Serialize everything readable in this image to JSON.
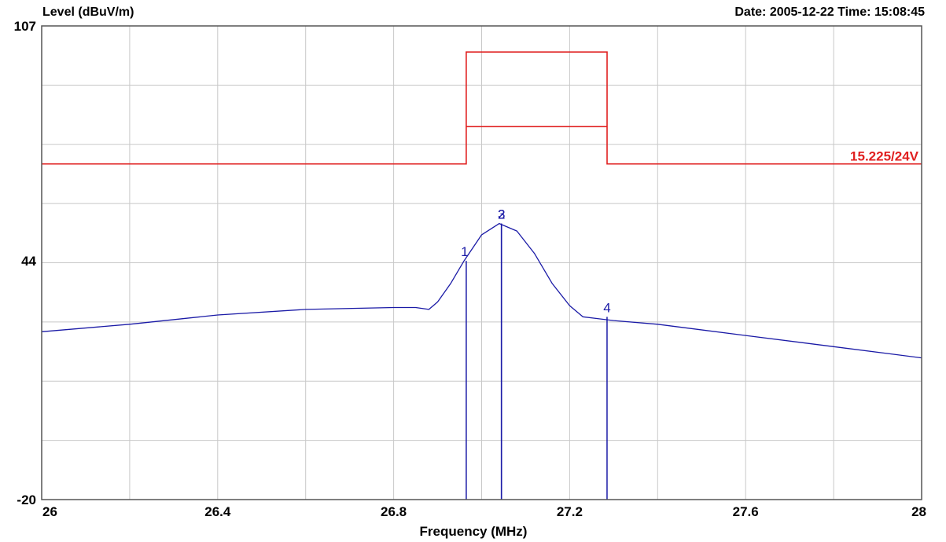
{
  "header": {
    "ylabel": "Level (dBuV/m)",
    "datetime": "Date: 2005-12-22  Time: 15:08:45"
  },
  "chart_data": {
    "type": "line",
    "xlabel": "Frequency (MHz)",
    "ylabel": "Level (dBuV/m)",
    "xlim": [
      26,
      28
    ],
    "ylim": [
      -20,
      107
    ],
    "x_ticks": [
      "26",
      "26.4",
      "26.8",
      "27.2",
      "27.6",
      "28"
    ],
    "x_tick_values": [
      26,
      26.4,
      26.8,
      27.2,
      27.6,
      28
    ],
    "y_ticks": [
      "107",
      "44",
      "-20"
    ],
    "y_tick_values": [
      107,
      44,
      -20
    ],
    "grid": true,
    "series": [
      {
        "color": "#1a1aa6",
        "x": [
          26.0,
          26.2,
          26.4,
          26.6,
          26.8,
          26.85,
          26.88,
          26.9,
          26.93,
          26.96,
          27.0,
          27.04,
          27.08,
          27.12,
          27.16,
          27.2,
          27.23,
          27.3,
          27.4,
          27.6,
          27.8,
          28.0
        ],
        "y": [
          25,
          27,
          29.5,
          31,
          31.5,
          31.5,
          31,
          33,
          38,
          44,
          51,
          54,
          52,
          46,
          38,
          32,
          29,
          28,
          27,
          24,
          21,
          18
        ]
      }
    ],
    "limit_lines": [
      {
        "color": "#e02020",
        "x": [
          26.0,
          26.965,
          26.965,
          27.285,
          27.285,
          28.0
        ],
        "y": [
          70,
          70,
          100,
          100,
          70,
          70
        ]
      },
      {
        "color": "#e02020",
        "x": [
          26.965,
          27.285
        ],
        "y": [
          80,
          80
        ]
      }
    ],
    "limit_label": "15.225/24V",
    "limit_label_color": "#e02020",
    "markers": [
      {
        "label": "1",
        "x": 26.965,
        "y": 44
      },
      {
        "label": "2",
        "x": 27.045,
        "y": 54
      },
      {
        "label": "3",
        "x": 27.045,
        "y": 54
      },
      {
        "label": "4",
        "x": 27.285,
        "y": 29
      }
    ]
  }
}
